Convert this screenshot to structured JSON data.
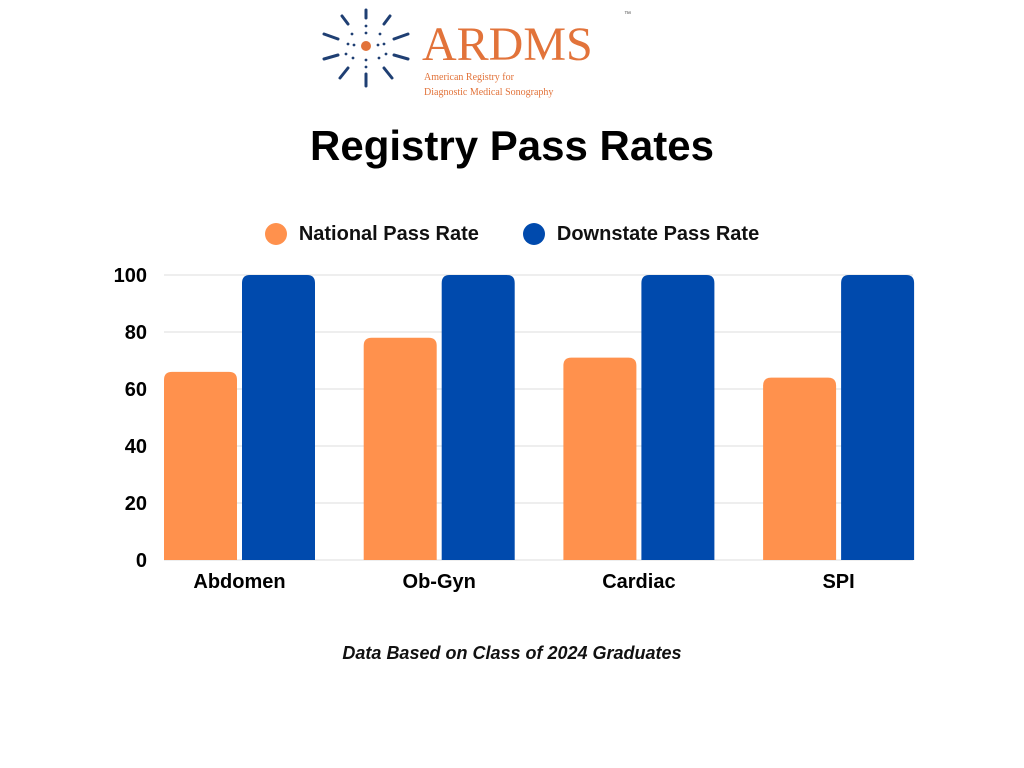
{
  "logo": {
    "name": "ARDMS",
    "trademark": "™",
    "line1": "American Registry for",
    "line2": "Diagnostic Medical Sonography",
    "brand_color": "#E2733A",
    "ray_color": "#1F3F73"
  },
  "footnote": "Data Based on Class of 2024 Graduates",
  "chart_data": {
    "type": "bar",
    "title": "Registry Pass Rates",
    "categories": [
      "Abdomen",
      "Ob-Gyn",
      "Cardiac",
      "SPI"
    ],
    "series": [
      {
        "name": "National Pass Rate",
        "color": "#FF914D",
        "values": [
          66,
          78,
          71,
          64
        ]
      },
      {
        "name": "Downstate Pass Rate",
        "color": "#004AAD",
        "values": [
          100,
          100,
          100,
          100
        ]
      }
    ],
    "yticks": [
      "0",
      "20",
      "40",
      "60",
      "80",
      "100"
    ],
    "ylim": [
      0,
      100
    ],
    "xlabel": "",
    "ylabel": "",
    "grid": true,
    "legend": "top"
  }
}
